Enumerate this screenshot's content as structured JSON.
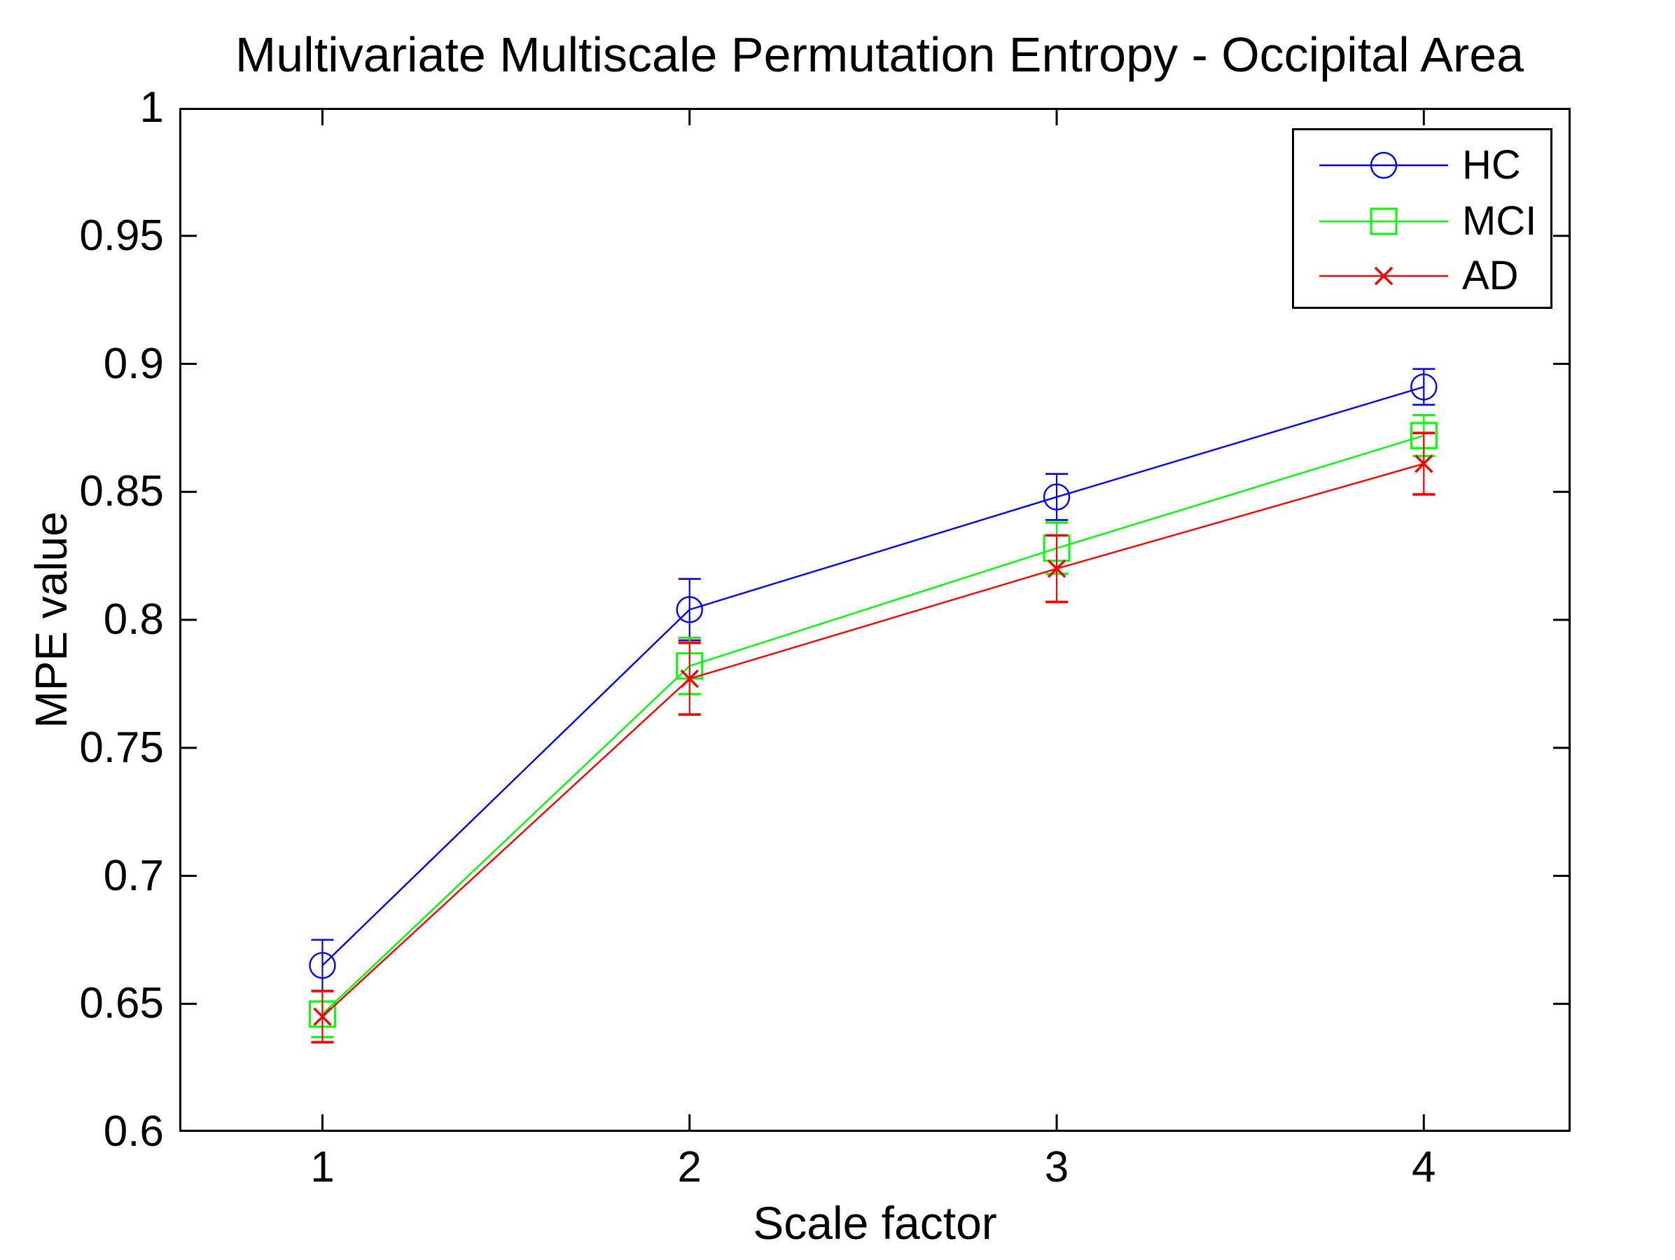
{
  "chart_data": {
    "type": "line",
    "title": "Multivariate Multiscale Permutation Entropy - Occipital Area",
    "xlabel": "Scale factor",
    "ylabel": "MPE value",
    "x": [
      1,
      2,
      3,
      4
    ],
    "xlim": [
      0.61,
      4.4
    ],
    "ylim": [
      0.6,
      1.0
    ],
    "xticks": [
      {
        "value": 1,
        "label": "1"
      },
      {
        "value": 2,
        "label": "2"
      },
      {
        "value": 3,
        "label": "3"
      },
      {
        "value": 4,
        "label": "4"
      }
    ],
    "yticks": [
      {
        "value": 0.6,
        "label": "0.6"
      },
      {
        "value": 0.65,
        "label": "0.65"
      },
      {
        "value": 0.7,
        "label": "0.7"
      },
      {
        "value": 0.75,
        "label": "0.75"
      },
      {
        "value": 0.8,
        "label": "0.8"
      },
      {
        "value": 0.85,
        "label": "0.85"
      },
      {
        "value": 0.9,
        "label": "0.9"
      },
      {
        "value": 0.95,
        "label": "0.95"
      },
      {
        "value": 1,
        "label": "1"
      }
    ],
    "grid": false,
    "legend_position": "top-right",
    "axis_color": "#000000",
    "series": [
      {
        "name": "HC",
        "color": "#0000ff",
        "marker": "circle",
        "values": [
          0.665,
          0.804,
          0.848,
          0.891
        ],
        "errors": [
          0.01,
          0.012,
          0.009,
          0.007
        ]
      },
      {
        "name": "MCI",
        "color": "#00ff00",
        "marker": "square",
        "values": [
          0.646,
          0.782,
          0.828,
          0.872
        ],
        "errors": [
          0.009,
          0.011,
          0.01,
          0.008
        ]
      },
      {
        "name": "AD",
        "color": "#ff0000",
        "marker": "x",
        "values": [
          0.645,
          0.777,
          0.82,
          0.861
        ],
        "errors": [
          0.01,
          0.014,
          0.013,
          0.012
        ]
      }
    ]
  }
}
